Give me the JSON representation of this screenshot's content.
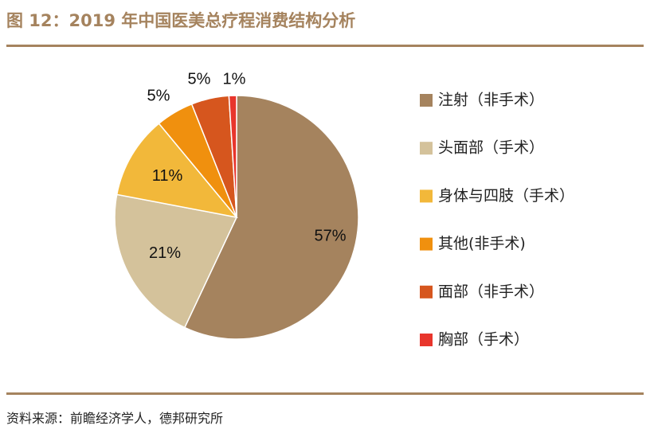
{
  "header": {
    "title": "图 12：2019 年中国医美总疗程消费结构分析"
  },
  "footer": {
    "source": "资料来源：前瞻经济学人，德邦研究所"
  },
  "chart_data": {
    "type": "pie",
    "title": "2019 年中国医美总疗程消费结构分析",
    "categories": [
      "注射（非手术）",
      "头面部（手术）",
      "身体与四肢（手术）",
      "其他(非手术)",
      "面部（非手术）",
      "胸部（手术）"
    ],
    "values": [
      57,
      21,
      11,
      5,
      5,
      1
    ],
    "labels": [
      "57%",
      "21%",
      "11%",
      "5%",
      "5%",
      "1%"
    ],
    "colors": [
      "#a5835e",
      "#d4c29b",
      "#f2b83a",
      "#f0900e",
      "#d6561e",
      "#e8352c"
    ],
    "legend_position": "right"
  }
}
